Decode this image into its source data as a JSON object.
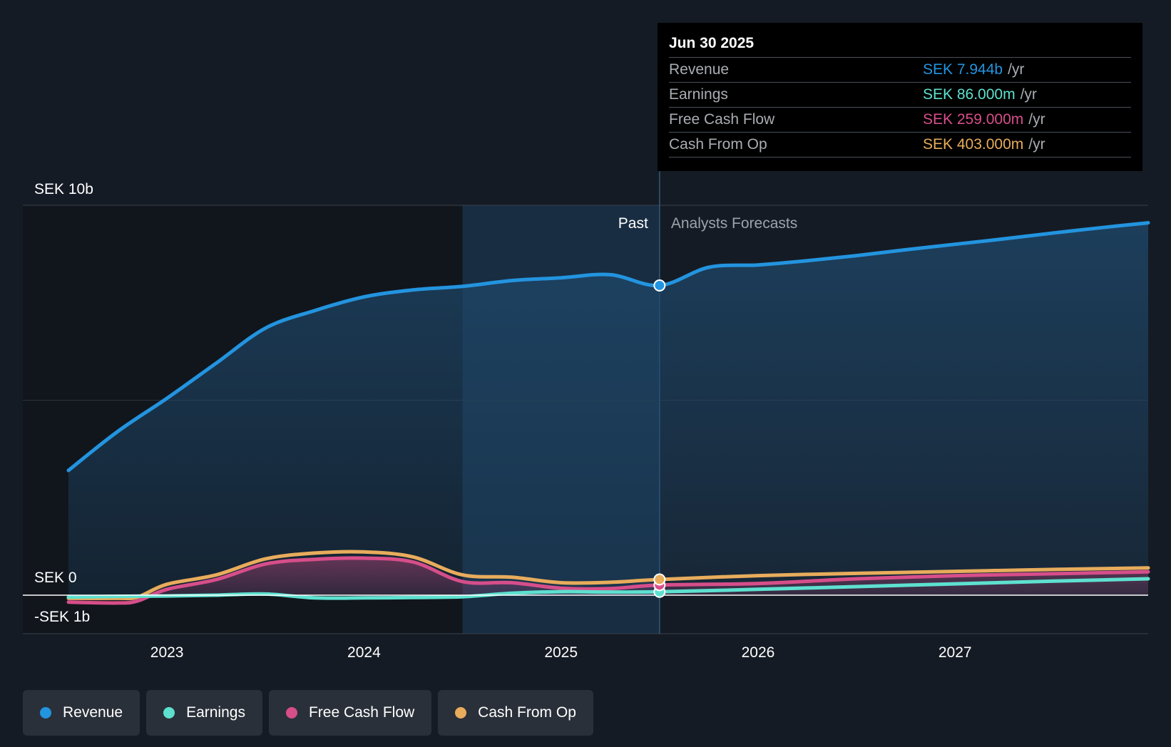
{
  "chart_data": {
    "type": "area",
    "y_unit": "SEK",
    "y_tick_labels": [
      "SEK 10b",
      "SEK 0",
      "-SEK 1b"
    ],
    "ylim": [
      -1,
      10
    ],
    "x_tick_labels": [
      "2023",
      "2024",
      "2025",
      "2026",
      "2027"
    ],
    "xlim": [
      2022.5,
      2027.98
    ],
    "past_label": "Past",
    "forecast_label": "Analysts Forecasts",
    "past_forecast_split": 2025.5,
    "highlight_start": 2024.5,
    "grid": true,
    "legend_position": "bottom-left",
    "series": [
      {
        "name": "Revenue",
        "color": "#2394df",
        "x": [
          2022.5,
          2022.75,
          2023.0,
          2023.25,
          2023.5,
          2023.75,
          2024.0,
          2024.25,
          2024.5,
          2024.75,
          2025.0,
          2025.25,
          2025.5,
          2025.75,
          2026.0,
          2026.25,
          2026.5,
          2026.75,
          2027.0,
          2027.25,
          2027.5,
          2027.75,
          2027.98
        ],
        "values": [
          3.2,
          4.2,
          5.05,
          5.95,
          6.85,
          7.3,
          7.65,
          7.83,
          7.92,
          8.07,
          8.14,
          8.22,
          7.944,
          8.41,
          8.47,
          8.58,
          8.71,
          8.86,
          9.0,
          9.14,
          9.29,
          9.43,
          9.55
        ]
      },
      {
        "name": "Earnings",
        "color": "#5ee0cf",
        "x": [
          2022.5,
          2022.75,
          2023.0,
          2023.25,
          2023.5,
          2023.75,
          2024.0,
          2024.25,
          2024.5,
          2024.75,
          2025.0,
          2025.25,
          2025.5,
          2026.0,
          2026.5,
          2027.0,
          2027.5,
          2027.98
        ],
        "values": [
          -0.05,
          -0.03,
          -0.02,
          0.0,
          0.03,
          -0.07,
          -0.07,
          -0.06,
          -0.04,
          0.05,
          0.09,
          0.08,
          0.086,
          0.15,
          0.22,
          0.29,
          0.36,
          0.42
        ]
      },
      {
        "name": "Free Cash Flow",
        "color": "#d64e8a",
        "x": [
          2022.5,
          2022.75,
          2022.85,
          2023.0,
          2023.25,
          2023.5,
          2023.75,
          2024.0,
          2024.25,
          2024.5,
          2024.75,
          2025.0,
          2025.25,
          2025.5,
          2026.0,
          2026.5,
          2027.0,
          2027.5,
          2027.98
        ],
        "values": [
          -0.18,
          -0.2,
          -0.15,
          0.15,
          0.4,
          0.8,
          0.92,
          0.95,
          0.85,
          0.35,
          0.32,
          0.18,
          0.17,
          0.259,
          0.3,
          0.42,
          0.5,
          0.55,
          0.6
        ]
      },
      {
        "name": "Cash From Op",
        "color": "#e8ac5c",
        "x": [
          2022.5,
          2022.75,
          2022.85,
          2023.0,
          2023.25,
          2023.5,
          2023.75,
          2024.0,
          2024.25,
          2024.5,
          2024.75,
          2025.0,
          2025.25,
          2025.5,
          2026.0,
          2026.5,
          2027.0,
          2027.5,
          2027.98
        ],
        "values": [
          -0.08,
          -0.08,
          -0.05,
          0.28,
          0.52,
          0.93,
          1.08,
          1.11,
          0.98,
          0.52,
          0.46,
          0.32,
          0.33,
          0.403,
          0.5,
          0.56,
          0.61,
          0.66,
          0.7
        ]
      }
    ]
  },
  "tooltip": {
    "date": "Jun 30 2025",
    "unit": "/yr",
    "rows": [
      {
        "label": "Revenue",
        "value": "SEK 7.944b",
        "color": "#2394df"
      },
      {
        "label": "Earnings",
        "value": "SEK 86.000m",
        "color": "#5ee0cf"
      },
      {
        "label": "Free Cash Flow",
        "value": "SEK 259.000m",
        "color": "#d64e8a"
      },
      {
        "label": "Cash From Op",
        "value": "SEK 403.000m",
        "color": "#e8ac5c"
      }
    ]
  },
  "legend": [
    {
      "label": "Revenue",
      "color": "#2394df"
    },
    {
      "label": "Earnings",
      "color": "#5ee0cf"
    },
    {
      "label": "Free Cash Flow",
      "color": "#d64e8a"
    },
    {
      "label": "Cash From Op",
      "color": "#e8ac5c"
    }
  ]
}
